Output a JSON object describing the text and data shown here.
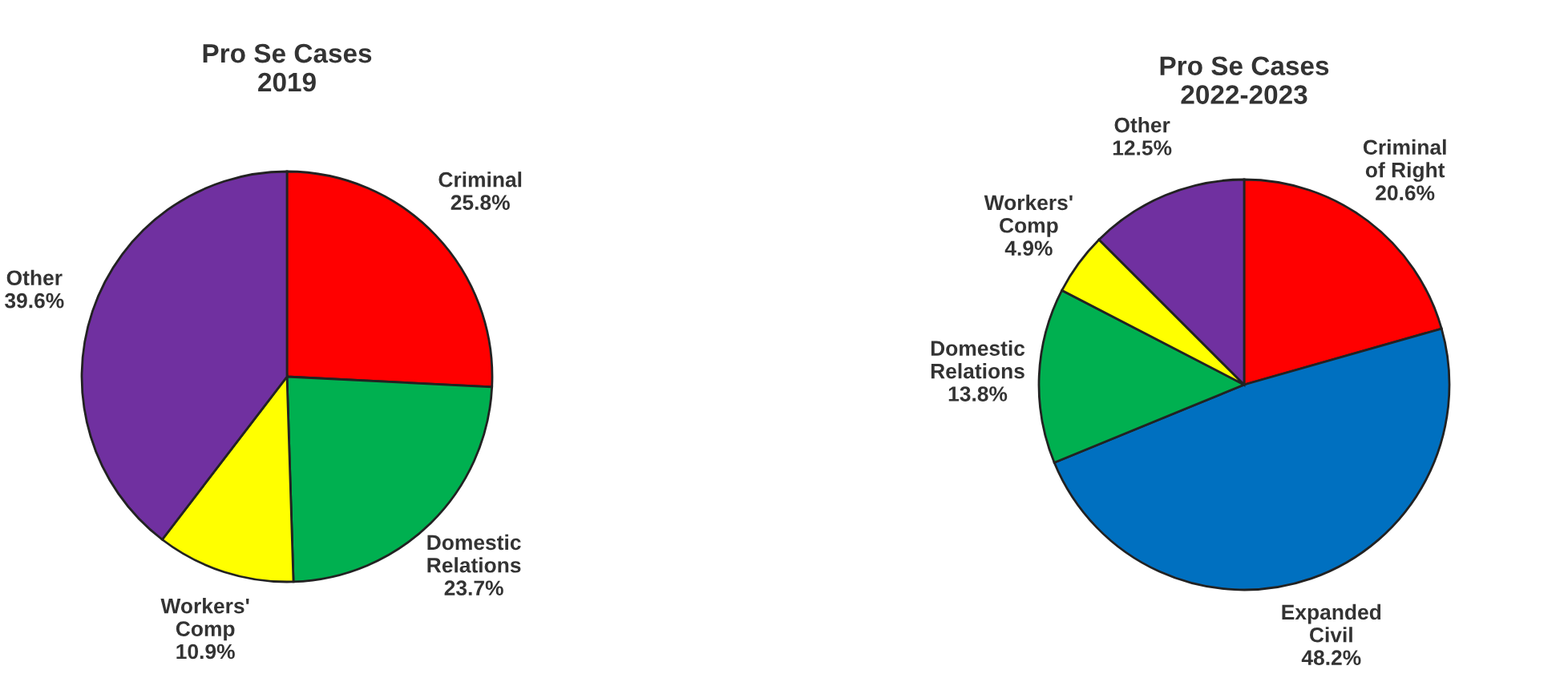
{
  "chart_data": [
    {
      "type": "pie",
      "title": "Pro Se Cases\n2019",
      "categories": [
        "Criminal",
        "Domestic\nRelations",
        "Workers'\nComp",
        "Other"
      ],
      "values": [
        25.8,
        23.7,
        10.9,
        39.6
      ],
      "value_labels": [
        "25.8%",
        "23.7%",
        "10.9%",
        "39.6%"
      ],
      "colors": [
        "#ff0000",
        "#00b050",
        "#ffff00",
        "#7030a0"
      ]
    },
    {
      "type": "pie",
      "title": "Pro Se Cases\n2022-2023",
      "categories": [
        "Criminal\nof Right",
        "Expanded\nCivil",
        "Domestic\nRelations",
        "Workers'\nComp",
        "Other"
      ],
      "values": [
        20.6,
        48.2,
        13.8,
        4.9,
        12.5
      ],
      "value_labels": [
        "20.6%",
        "48.2%",
        "13.8%",
        "4.9%",
        "12.5%"
      ],
      "colors": [
        "#ff0000",
        "#0070c0",
        "#00b050",
        "#ffff00",
        "#7030a0"
      ]
    }
  ]
}
